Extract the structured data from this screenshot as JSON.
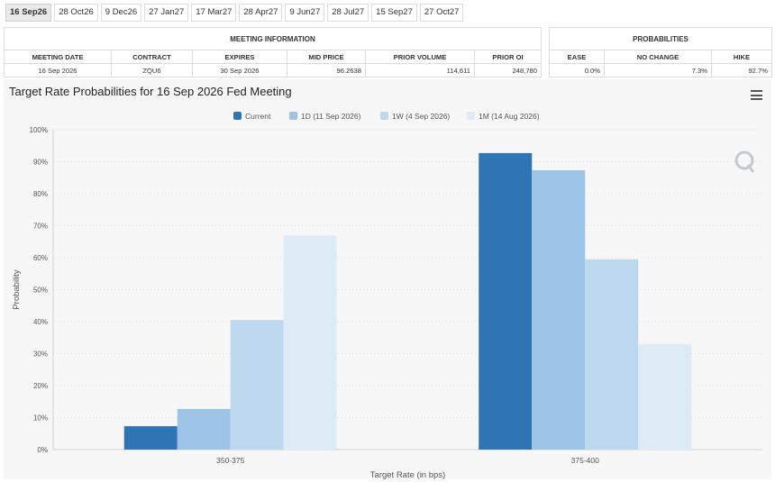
{
  "tabs": [
    "16 Sep26",
    "28 Oct26",
    "9 Dec26",
    "27 Jan27",
    "17 Mar27",
    "28 Apr27",
    "9 Jun27",
    "28 Jul27",
    "15 Sep27",
    "27 Oct27"
  ],
  "active_tab": 0,
  "meeting_info": {
    "title": "MEETING INFORMATION",
    "headers": [
      "MEETING DATE",
      "CONTRACT",
      "EXPIRES",
      "MID PRICE",
      "PRIOR VOLUME",
      "PRIOR OI"
    ],
    "row": [
      "16 Sep 2026",
      "ZQU6",
      "30 Sep 2026",
      "96.2638",
      "114,611",
      "248,780"
    ]
  },
  "probabilities": {
    "title": "PROBABILITIES",
    "headers": [
      "EASE",
      "NO CHANGE",
      "HIKE"
    ],
    "row": [
      "0.0%",
      "7.3%",
      "92.7%"
    ]
  },
  "chart_data": {
    "type": "bar",
    "title": "Target Rate Probabilities for 16 Sep 2026 Fed Meeting",
    "xlabel": "Target Rate (in bps)",
    "ylabel": "Probability",
    "ylim": [
      0,
      100
    ],
    "yticks": [
      "0%",
      "10%",
      "20%",
      "30%",
      "40%",
      "50%",
      "60%",
      "70%",
      "80%",
      "90%",
      "100%"
    ],
    "categories": [
      "350-375",
      "375-400"
    ],
    "series": [
      {
        "name": "Current",
        "color": "#2e75b6",
        "values": [
          7.3,
          92.7
        ]
      },
      {
        "name": "1D (11 Sep 2026)",
        "color": "#9dc3e6",
        "values": [
          12.7,
          87.3
        ]
      },
      {
        "name": "1W (4 Sep 2026)",
        "color": "#bdd7ee",
        "values": [
          40.5,
          59.5
        ]
      },
      {
        "name": "1M (14 Aug 2026)",
        "color": "#deebf7",
        "values": [
          67.0,
          33.0
        ]
      }
    ],
    "legend_position": "top-center",
    "grid": true
  }
}
